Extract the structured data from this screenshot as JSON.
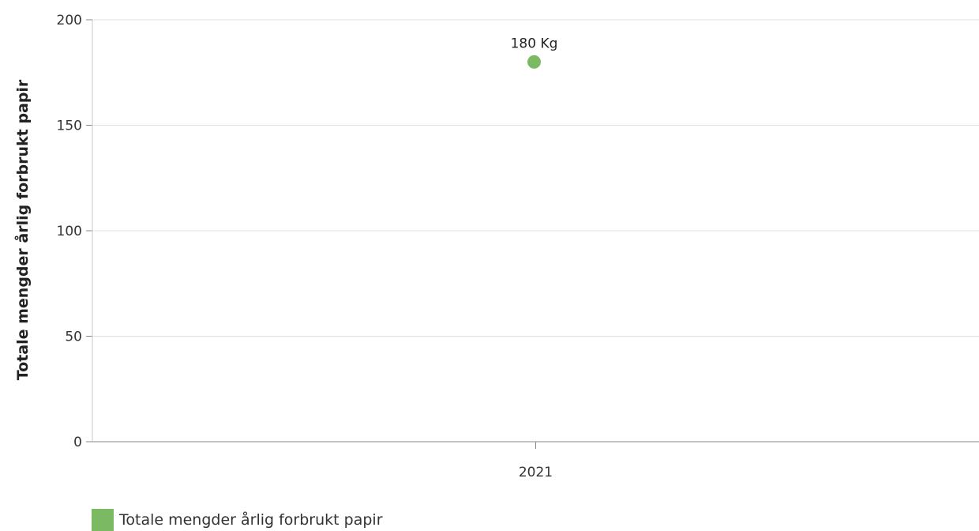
{
  "chart_data": {
    "type": "scatter",
    "title": "",
    "xlabel": "",
    "ylabel": "Totale mengder årlig forbrukt papir",
    "categories": [
      "2021"
    ],
    "series": [
      {
        "name": "Totale mengder årlig forbrukt papir",
        "values": [
          180
        ],
        "data_labels": [
          "180 Kg"
        ]
      }
    ],
    "ylim": [
      0,
      200
    ],
    "yticks": [
      "0",
      "50",
      "100",
      "150",
      "200"
    ],
    "grid": true,
    "legend_position": "bottom-left"
  },
  "colors": {
    "series": "#7cb963",
    "grid": "#e2e2e2",
    "axis": "#888888"
  },
  "legend": {
    "label": "Totale mengder årlig forbrukt papir"
  }
}
